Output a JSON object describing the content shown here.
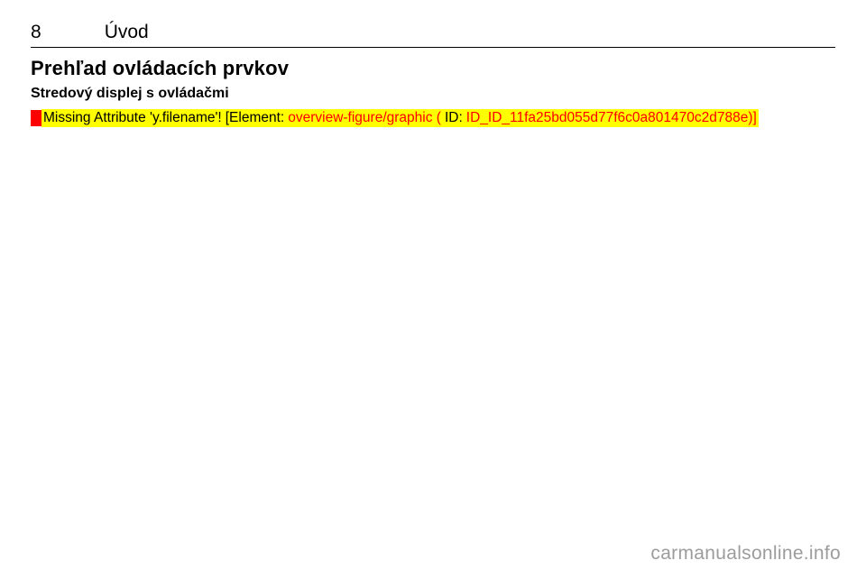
{
  "page_number": "8",
  "section_title": "Úvod",
  "heading1": "Prehľad ovládacích prvkov",
  "heading2": "Stredový displej s ovládačmi",
  "error": {
    "prefix": "Missing Attribute 'y.filename'!",
    "bracket_open": " [Element: ",
    "element": "overview-figure/graphic (",
    "id_label": "ID: ",
    "id_value": "ID_ID_11fa25bd055d77f6c0a801470c2d788e)]"
  },
  "watermark": "carmanualsonline.info",
  "colors": {
    "background": "#ffffff",
    "text": "#000000",
    "error_red": "#ff0000",
    "highlight_yellow": "#ffff00",
    "watermark_grey": "#9c9c9c",
    "rule": "#000000"
  }
}
